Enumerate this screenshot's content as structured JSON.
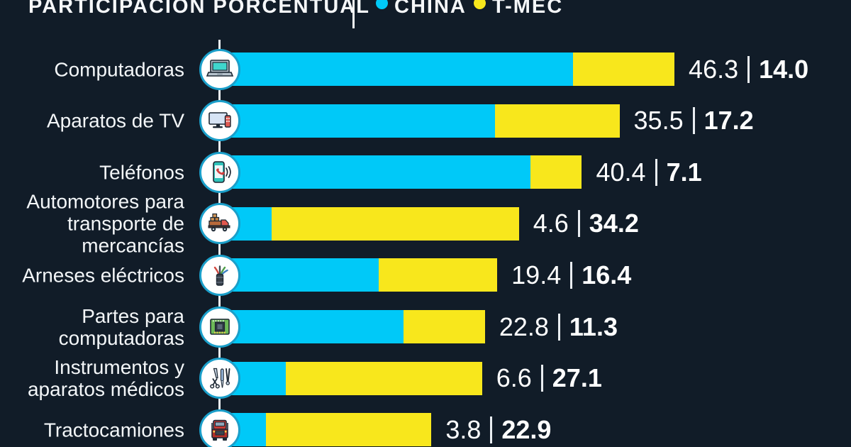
{
  "header": {
    "title": "PARTICIPACIÓN PORCENTUAL",
    "separator": "|",
    "legend": [
      {
        "label": "CHINA",
        "color": "#00c9f8"
      },
      {
        "label": "T-MEC",
        "color": "#f8e71c"
      }
    ]
  },
  "colors": {
    "background": "#111c28",
    "china_bar": "#00c9f8",
    "tmec_bar": "#f8e71c",
    "icon_ring": "#1b9fca",
    "connector_line": "#eef1f4",
    "text": "#ffffff"
  },
  "chart_data": {
    "type": "bar",
    "orientation": "horizontal",
    "stacked": true,
    "unit": "percent",
    "series_names": [
      "CHINA",
      "T-MEC"
    ],
    "categories": [
      "Computadoras",
      "Aparatos de TV",
      "Teléfonos",
      "Automotores para transporte de mercancías",
      "Arneses eléctricos",
      "Partes para computadoras",
      "Instrumentos y aparatos médicos",
      "Tractocamiones"
    ],
    "rows": [
      {
        "category": "Computadoras",
        "label_lines": [
          "Computadoras"
        ],
        "icon": "laptop-icon",
        "china": 46.3,
        "tmec": 14.0,
        "china_text": "46.3",
        "tmec_text": "14.0"
      },
      {
        "category": "Aparatos de TV",
        "label_lines": [
          "Aparatos de TV"
        ],
        "icon": "tv-icon",
        "china": 35.5,
        "tmec": 17.2,
        "china_text": "35.5",
        "tmec_text": "17.2"
      },
      {
        "category": "Teléfonos",
        "label_lines": [
          "Teléfonos"
        ],
        "icon": "phone-icon",
        "china": 40.4,
        "tmec": 7.1,
        "china_text": "40.4",
        "tmec_text": "7.1"
      },
      {
        "category": "Automotores para transporte de mercancías",
        "label_lines": [
          "Automotores para",
          "transporte de",
          "mercancías"
        ],
        "icon": "cargo-truck-icon",
        "china": 4.6,
        "tmec": 34.2,
        "china_text": "4.6",
        "tmec_text": "34.2"
      },
      {
        "category": "Arneses eléctricos",
        "label_lines": [
          "Arneses eléctricos"
        ],
        "icon": "wire-harness-icon",
        "china": 19.4,
        "tmec": 16.4,
        "china_text": "19.4",
        "tmec_text": "16.4"
      },
      {
        "category": "Partes para computadoras",
        "label_lines": [
          "Partes para",
          "computadoras"
        ],
        "icon": "chip-icon",
        "china": 22.8,
        "tmec": 11.3,
        "china_text": "22.8",
        "tmec_text": "11.3"
      },
      {
        "category": "Instrumentos y aparatos médicos",
        "label_lines": [
          "Instrumentos y",
          "aparatos médicos"
        ],
        "icon": "medical-instruments-icon",
        "china": 6.6,
        "tmec": 27.1,
        "china_text": "6.6",
        "tmec_text": "27.1"
      },
      {
        "category": "Tractocamiones",
        "label_lines": [
          "Tractocamiones"
        ],
        "icon": "semi-truck-icon",
        "china": 3.8,
        "tmec": 22.9,
        "china_text": "3.8",
        "tmec_text": "22.9"
      }
    ]
  }
}
